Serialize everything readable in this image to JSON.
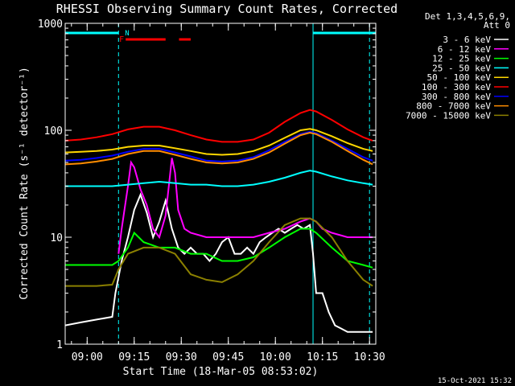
{
  "chart_data": {
    "type": "line",
    "title": "RHESSI Observing Summary Count Rates, Corrected",
    "xlabel": "Start Time (18-Mar-05 08:53:02)",
    "ylabel": "Corrected Count Rate (s⁻¹ detector⁻¹)",
    "x_units": "minutes after 08:53:02",
    "xlim": [
      0,
      99
    ],
    "ylim": [
      1,
      1000
    ],
    "y_scale": "log",
    "x_ticks": [
      {
        "label": "09:00",
        "x": 7
      },
      {
        "label": "09:15",
        "x": 22
      },
      {
        "label": "09:30",
        "x": 37
      },
      {
        "label": "09:45",
        "x": 52
      },
      {
        "label": "10:00",
        "x": 67
      },
      {
        "label": "10:15",
        "x": 82
      },
      {
        "label": "10:30",
        "x": 97
      }
    ],
    "y_ticks": [
      {
        "label": "1",
        "y": 1
      },
      {
        "label": "10",
        "y": 10
      },
      {
        "label": "100",
        "y": 100
      },
      {
        "label": "1000",
        "y": 1000
      }
    ],
    "legend_header": [
      "Det 1,3,4,5,6,9,",
      "Att 0"
    ],
    "legend_position": "right",
    "footer_date": "15-Oct-2021 15:32",
    "flags": {
      "night": [
        {
          "x0": 0,
          "x1": 17,
          "label": "N"
        },
        {
          "x0": 79,
          "x1": 99
        }
      ],
      "flare": [
        {
          "x0": 18,
          "x1": 32,
          "label": "F"
        },
        {
          "x0": 35,
          "x1": 40
        }
      ],
      "dashed_verticals": [
        17,
        97
      ],
      "solid_verticals": [
        79
      ]
    },
    "series": [
      {
        "name": "3 - 6 keV",
        "color": "#ffffff",
        "points": [
          [
            0,
            1.5
          ],
          [
            5,
            1.6
          ],
          [
            10,
            1.7
          ],
          [
            15,
            1.8
          ],
          [
            16,
            3
          ],
          [
            18,
            6
          ],
          [
            20,
            10
          ],
          [
            22,
            18
          ],
          [
            24,
            25
          ],
          [
            26,
            17
          ],
          [
            28,
            10
          ],
          [
            30,
            14
          ],
          [
            32,
            22
          ],
          [
            34,
            12
          ],
          [
            36,
            8
          ],
          [
            38,
            7
          ],
          [
            40,
            8
          ],
          [
            42,
            7
          ],
          [
            44,
            7
          ],
          [
            46,
            6
          ],
          [
            48,
            7
          ],
          [
            50,
            9
          ],
          [
            52,
            10
          ],
          [
            54,
            7
          ],
          [
            56,
            7
          ],
          [
            58,
            8
          ],
          [
            60,
            7
          ],
          [
            62,
            9
          ],
          [
            64,
            10
          ],
          [
            66,
            11
          ],
          [
            68,
            12
          ],
          [
            70,
            11
          ],
          [
            72,
            12
          ],
          [
            74,
            13
          ],
          [
            76,
            12
          ],
          [
            78,
            13
          ],
          [
            79,
            7
          ],
          [
            80,
            3
          ],
          [
            82,
            3
          ],
          [
            84,
            2
          ],
          [
            86,
            1.5
          ],
          [
            88,
            1.4
          ],
          [
            90,
            1.3
          ],
          [
            92,
            1.3
          ],
          [
            94,
            1.3
          ],
          [
            96,
            1.3
          ],
          [
            98,
            1.3
          ]
        ]
      },
      {
        "name": "6 - 12 keV",
        "color": "#ff00ff",
        "points": [
          [
            17,
            7
          ],
          [
            18,
            12
          ],
          [
            20,
            30
          ],
          [
            21,
            50
          ],
          [
            22,
            45
          ],
          [
            24,
            28
          ],
          [
            26,
            20
          ],
          [
            28,
            12
          ],
          [
            30,
            10
          ],
          [
            32,
            16
          ],
          [
            34,
            55
          ],
          [
            35,
            40
          ],
          [
            36,
            18
          ],
          [
            38,
            12
          ],
          [
            40,
            11
          ],
          [
            45,
            10
          ],
          [
            50,
            10
          ],
          [
            55,
            10
          ],
          [
            60,
            10
          ],
          [
            65,
            11
          ],
          [
            70,
            12
          ],
          [
            75,
            14
          ],
          [
            78,
            15
          ],
          [
            80,
            14
          ],
          [
            82,
            12
          ],
          [
            85,
            11
          ],
          [
            90,
            10
          ],
          [
            95,
            10
          ],
          [
            98,
            10
          ]
        ]
      },
      {
        "name": "12 - 25 keV",
        "color": "#00ff00",
        "points": [
          [
            0,
            5.5
          ],
          [
            5,
            5.5
          ],
          [
            10,
            5.5
          ],
          [
            15,
            5.5
          ],
          [
            17,
            6
          ],
          [
            20,
            8
          ],
          [
            22,
            11
          ],
          [
            25,
            9
          ],
          [
            30,
            8
          ],
          [
            35,
            8
          ],
          [
            40,
            7
          ],
          [
            45,
            7
          ],
          [
            50,
            6
          ],
          [
            55,
            6
          ],
          [
            60,
            6.5
          ],
          [
            65,
            8
          ],
          [
            70,
            10
          ],
          [
            75,
            12
          ],
          [
            78,
            12
          ],
          [
            80,
            11
          ],
          [
            85,
            8
          ],
          [
            90,
            6
          ],
          [
            95,
            5.5
          ],
          [
            98,
            5.2
          ]
        ]
      },
      {
        "name": "25 - 50 keV",
        "color": "#00ffff",
        "points": [
          [
            0,
            30
          ],
          [
            5,
            30
          ],
          [
            10,
            30
          ],
          [
            15,
            30
          ],
          [
            20,
            31
          ],
          [
            25,
            32
          ],
          [
            30,
            33
          ],
          [
            35,
            32
          ],
          [
            40,
            31
          ],
          [
            45,
            31
          ],
          [
            50,
            30
          ],
          [
            55,
            30
          ],
          [
            60,
            31
          ],
          [
            65,
            33
          ],
          [
            70,
            36
          ],
          [
            75,
            40
          ],
          [
            78,
            42
          ],
          [
            80,
            41
          ],
          [
            85,
            37
          ],
          [
            90,
            34
          ],
          [
            95,
            32
          ],
          [
            98,
            31
          ]
        ]
      },
      {
        "name": "50 - 100 keV",
        "color": "#ffd700",
        "points": [
          [
            0,
            62
          ],
          [
            5,
            63
          ],
          [
            10,
            64
          ],
          [
            15,
            66
          ],
          [
            20,
            70
          ],
          [
            25,
            72
          ],
          [
            30,
            72
          ],
          [
            35,
            68
          ],
          [
            40,
            64
          ],
          [
            45,
            60
          ],
          [
            50,
            59
          ],
          [
            55,
            60
          ],
          [
            60,
            64
          ],
          [
            65,
            72
          ],
          [
            70,
            85
          ],
          [
            75,
            100
          ],
          [
            78,
            103
          ],
          [
            80,
            100
          ],
          [
            85,
            88
          ],
          [
            90,
            76
          ],
          [
            95,
            67
          ],
          [
            98,
            64
          ]
        ]
      },
      {
        "name": "100 - 300 keV",
        "color": "#ff0000",
        "points": [
          [
            0,
            80
          ],
          [
            5,
            82
          ],
          [
            10,
            86
          ],
          [
            15,
            92
          ],
          [
            20,
            102
          ],
          [
            25,
            108
          ],
          [
            30,
            108
          ],
          [
            35,
            100
          ],
          [
            40,
            90
          ],
          [
            45,
            82
          ],
          [
            50,
            78
          ],
          [
            55,
            78
          ],
          [
            60,
            82
          ],
          [
            65,
            95
          ],
          [
            70,
            120
          ],
          [
            75,
            145
          ],
          [
            78,
            155
          ],
          [
            80,
            150
          ],
          [
            85,
            125
          ],
          [
            90,
            102
          ],
          [
            95,
            86
          ],
          [
            98,
            80
          ]
        ]
      },
      {
        "name": "300 - 800 keV",
        "color": "#0000ff",
        "points": [
          [
            0,
            52
          ],
          [
            5,
            53
          ],
          [
            10,
            55
          ],
          [
            15,
            58
          ],
          [
            20,
            63
          ],
          [
            25,
            67
          ],
          [
            30,
            67
          ],
          [
            35,
            62
          ],
          [
            40,
            57
          ],
          [
            45,
            52
          ],
          [
            50,
            51
          ],
          [
            55,
            52
          ],
          [
            60,
            56
          ],
          [
            65,
            65
          ],
          [
            70,
            78
          ],
          [
            75,
            92
          ],
          [
            78,
            97
          ],
          [
            80,
            94
          ],
          [
            85,
            80
          ],
          [
            90,
            67
          ],
          [
            95,
            56
          ],
          [
            98,
            52
          ]
        ]
      },
      {
        "name": "800 - 7000 keV",
        "color": "#ff8c00",
        "points": [
          [
            0,
            48
          ],
          [
            5,
            49
          ],
          [
            10,
            51
          ],
          [
            15,
            54
          ],
          [
            20,
            60
          ],
          [
            25,
            64
          ],
          [
            30,
            64
          ],
          [
            35,
            59
          ],
          [
            40,
            54
          ],
          [
            45,
            50
          ],
          [
            50,
            49
          ],
          [
            55,
            50
          ],
          [
            60,
            54
          ],
          [
            65,
            62
          ],
          [
            70,
            75
          ],
          [
            75,
            90
          ],
          [
            78,
            95
          ],
          [
            80,
            92
          ],
          [
            85,
            78
          ],
          [
            90,
            64
          ],
          [
            95,
            53
          ],
          [
            98,
            48
          ]
        ]
      },
      {
        "name": "7000 - 15000 keV",
        "color": "#8b8000",
        "points": [
          [
            0,
            3.5
          ],
          [
            5,
            3.5
          ],
          [
            10,
            3.5
          ],
          [
            15,
            3.6
          ],
          [
            17,
            5
          ],
          [
            20,
            7
          ],
          [
            25,
            8
          ],
          [
            30,
            8
          ],
          [
            35,
            7
          ],
          [
            40,
            4.5
          ],
          [
            45,
            4
          ],
          [
            50,
            3.8
          ],
          [
            55,
            4.5
          ],
          [
            60,
            6
          ],
          [
            65,
            9
          ],
          [
            70,
            13
          ],
          [
            75,
            15
          ],
          [
            78,
            15
          ],
          [
            80,
            14
          ],
          [
            85,
            10
          ],
          [
            90,
            6
          ],
          [
            95,
            4
          ],
          [
            98,
            3.5
          ]
        ]
      }
    ]
  }
}
